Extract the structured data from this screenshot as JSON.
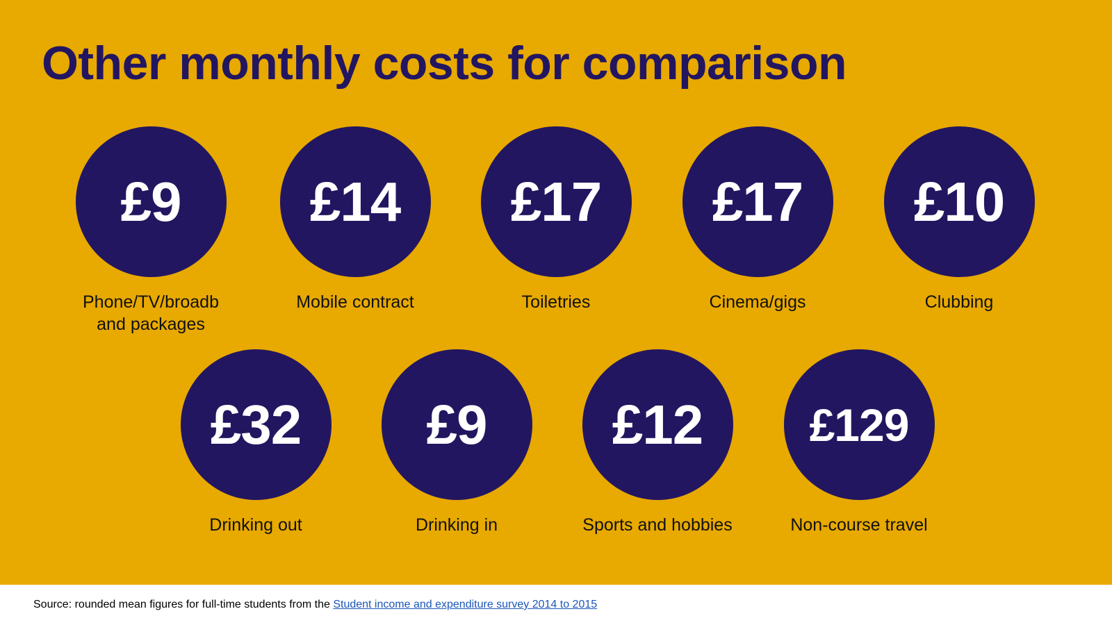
{
  "title": "Other monthly costs for comparison",
  "items": [
    {
      "amount": "£9",
      "label": "Phone/TV/broadb and packages"
    },
    {
      "amount": "£14",
      "label": "Mobile contract"
    },
    {
      "amount": "£17",
      "label": "Toiletries"
    },
    {
      "amount": "£17",
      "label": "Cinema/gigs"
    },
    {
      "amount": "£10",
      "label": "Clubbing"
    },
    {
      "amount": "£32",
      "label": "Drinking out"
    },
    {
      "amount": "£9",
      "label": "Drinking in"
    },
    {
      "amount": "£12",
      "label": "Sports and hobbies"
    },
    {
      "amount": "£129",
      "label": "Non-course travel"
    }
  ],
  "footer": {
    "source_text": "Source: rounded mean figures for full-time students from the",
    "link_text": "Student income and expenditure survey 2014 to 2015"
  },
  "colors": {
    "background": "#e8a900",
    "circle": "#231660",
    "title": "#231660",
    "link": "#1a56b8"
  }
}
